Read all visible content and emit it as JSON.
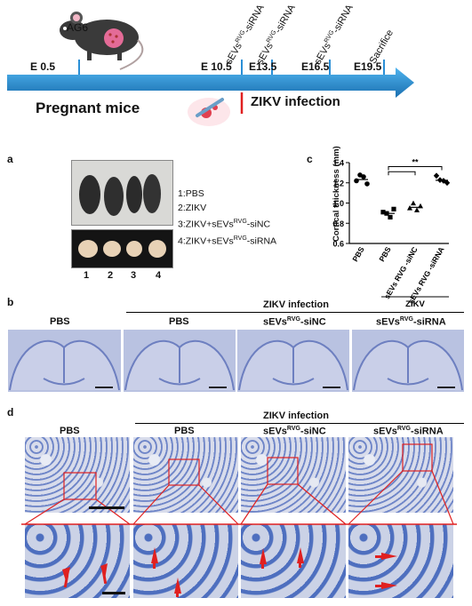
{
  "panel_a_top": {
    "strain": "AG6",
    "timepoints": [
      "E 0.5",
      "E 10.5",
      "E13.5",
      "E16.5",
      "E19.5"
    ],
    "treatment_base": "sEVs",
    "treatment_sup": "RVG",
    "treatment_suffix": "-siRNA",
    "sacrifice": "Sacrifice",
    "subject": "Pregnant mice",
    "infection": "ZIKV infection"
  },
  "panel_a": {
    "letter": "a",
    "legend": [
      {
        "pre": "1:PBS",
        "sup": "",
        "post": ""
      },
      {
        "pre": "2:ZIKV",
        "sup": "",
        "post": ""
      },
      {
        "pre": "3:ZIKV+sEVs",
        "sup": "RVG",
        "post": "-siNC"
      },
      {
        "pre": "4:ZIKV+sEVs",
        "sup": "RVG",
        "post": "-siRNA"
      }
    ],
    "numbers": [
      "1",
      "2",
      "3",
      "4"
    ]
  },
  "panel_c": {
    "letter": "c",
    "significance": "**",
    "group_label": "ZIKV",
    "chart_data": {
      "type": "scatter",
      "ylabel": "Cortical thickness (mm)",
      "ylim": [
        0.6,
        1.4
      ],
      "yticks": [
        "0.6",
        "0.8",
        "1.0",
        "1.2",
        "1.4"
      ],
      "categories": [
        "PBS",
        "PBS",
        "sEVs RVG -siNC",
        "sEVs RVG -siRNA"
      ],
      "series": [
        {
          "marker": "circle",
          "values": [
            1.22,
            1.26,
            1.26,
            1.19
          ]
        },
        {
          "marker": "square",
          "values": [
            0.91,
            0.88,
            0.86,
            0.94
          ]
        },
        {
          "marker": "triangle",
          "values": [
            0.95,
            0.98,
            0.93,
            0.97
          ]
        },
        {
          "marker": "diamond",
          "values": [
            1.27,
            1.21,
            1.22,
            1.2
          ]
        }
      ]
    }
  },
  "panel_b": {
    "letter": "b",
    "header": "ZIKV infection",
    "columns": [
      {
        "pre": "PBS",
        "sup": "",
        "post": ""
      },
      {
        "pre": "PBS",
        "sup": "",
        "post": ""
      },
      {
        "pre": "sEVs",
        "sup": "RVG",
        "post": "-siNC"
      },
      {
        "pre": "sEVs",
        "sup": "RVG",
        "post": "-siRNA"
      }
    ],
    "scale": "1 mm"
  },
  "panel_d": {
    "letter": "d",
    "header": "ZIKV infection",
    "columns": [
      {
        "pre": "PBS",
        "sup": "",
        "post": ""
      },
      {
        "pre": "PBS",
        "sup": "",
        "post": ""
      },
      {
        "pre": "sEVs",
        "sup": "RVG",
        "post": "-siNC"
      },
      {
        "pre": "sEVs",
        "sup": "RVG",
        "post": "-siRNA"
      }
    ]
  },
  "colors": {
    "arrow": "#2a8fd6",
    "arrow_dark": "#1a6fb0",
    "red": "#e02020",
    "mouse": "#3a3a3a"
  }
}
